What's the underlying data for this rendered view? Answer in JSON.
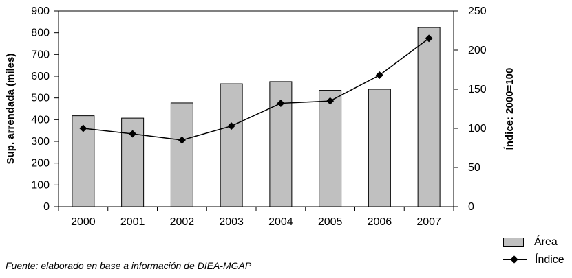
{
  "chart_data": {
    "type": "bar",
    "categories": [
      "2000",
      "2001",
      "2002",
      "2003",
      "2004",
      "2005",
      "2006",
      "2007"
    ],
    "series": [
      {
        "name": "Área",
        "type": "bar",
        "axis": "left",
        "color": "#c0c0c0",
        "values": [
          418,
          407,
          477,
          565,
          575,
          535,
          540,
          824
        ]
      },
      {
        "name": "Índice",
        "type": "line",
        "axis": "right",
        "color": "#000000",
        "marker": "diamond",
        "values": [
          100,
          93,
          85,
          103,
          132,
          135,
          168,
          215
        ]
      }
    ],
    "ylabel": "Sup. arrendada (miles)",
    "ylim": [
      0,
      900
    ],
    "yticks": [
      "0",
      "100",
      "200",
      "300",
      "400",
      "500",
      "600",
      "700",
      "800",
      "900"
    ],
    "y2label": "Índice: 2000=100",
    "y2lim": [
      0,
      250
    ],
    "y2ticks": [
      "0",
      "50",
      "100",
      "150",
      "200",
      "250"
    ],
    "grid": false,
    "legend_position": "bottom-right"
  },
  "legend": {
    "area_label": "Área",
    "index_label": "Índice"
  },
  "source_note": "Fuente: elaborado en base a información de DIEA-MGAP"
}
